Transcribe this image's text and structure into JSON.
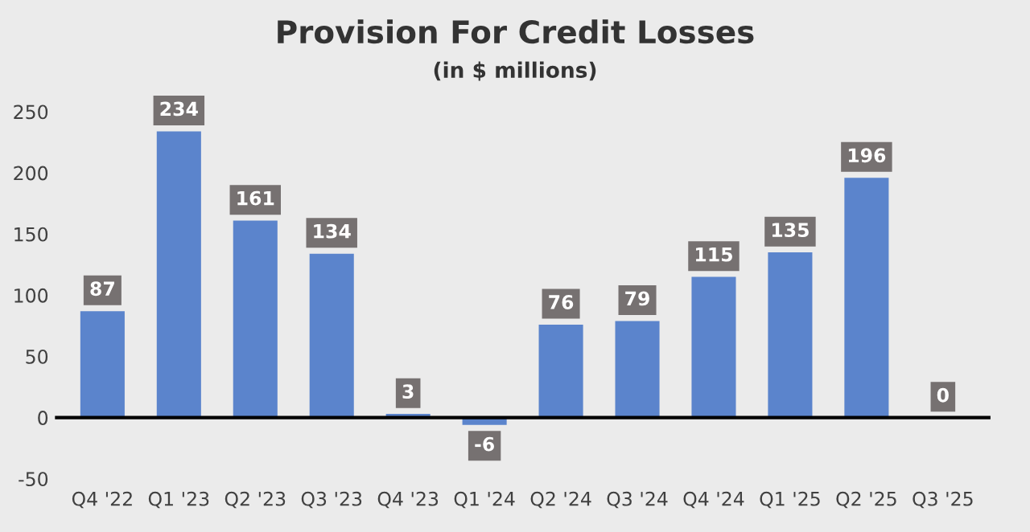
{
  "chart_data": {
    "type": "bar",
    "title": "Provision For Credit Losses",
    "subtitle": "(in $ millions)",
    "categories": [
      "Q4 '22",
      "Q1 '23",
      "Q2 '23",
      "Q3 '23",
      "Q4 '23",
      "Q1 '24",
      "Q2 '24",
      "Q3 '24",
      "Q4 '24",
      "Q1 '25",
      "Q2 '25",
      "Q3 '25"
    ],
    "values": [
      87,
      234,
      161,
      134,
      3,
      -6,
      76,
      79,
      115,
      135,
      196,
      0
    ],
    "color": "#5b84cc",
    "ylim": [
      -50,
      250
    ],
    "yticks": [
      -50,
      0,
      50,
      100,
      150,
      200,
      250
    ],
    "data_labels": true,
    "legend": false
  }
}
